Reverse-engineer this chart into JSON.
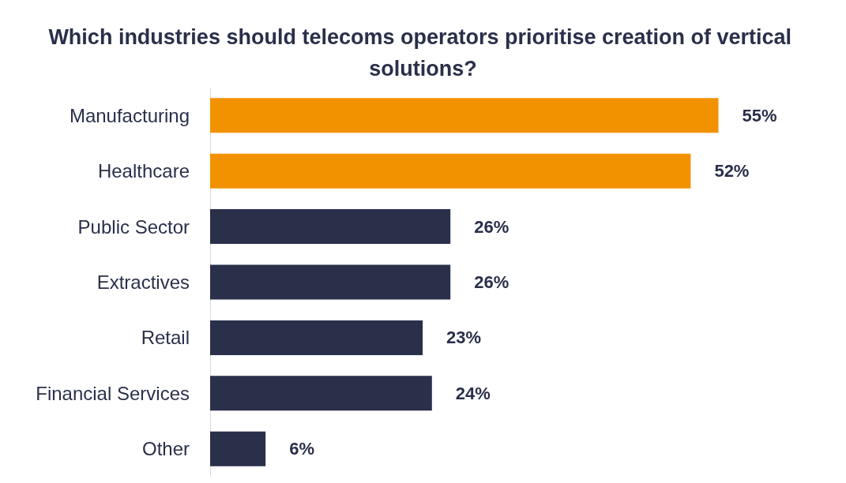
{
  "chart_data": {
    "type": "bar",
    "orientation": "horizontal",
    "title": "Which industries should telecoms operators prioritise creation of vertical solutions?",
    "categories": [
      "Manufacturing",
      "Healthcare",
      "Public Sector",
      "Extractives",
      "Retail",
      "Financial Services",
      "Other"
    ],
    "values": [
      55,
      52,
      26,
      26,
      23,
      24,
      6
    ],
    "colors": [
      "#f39200",
      "#f39200",
      "#2a2f4a",
      "#2a2f4a",
      "#2a2f4a",
      "#2a2f4a",
      "#2a2f4a"
    ],
    "value_labels": [
      "55%",
      "52%",
      "26%",
      "26%",
      "23%",
      "24%",
      "6%"
    ],
    "tick_labels": "y"
  }
}
